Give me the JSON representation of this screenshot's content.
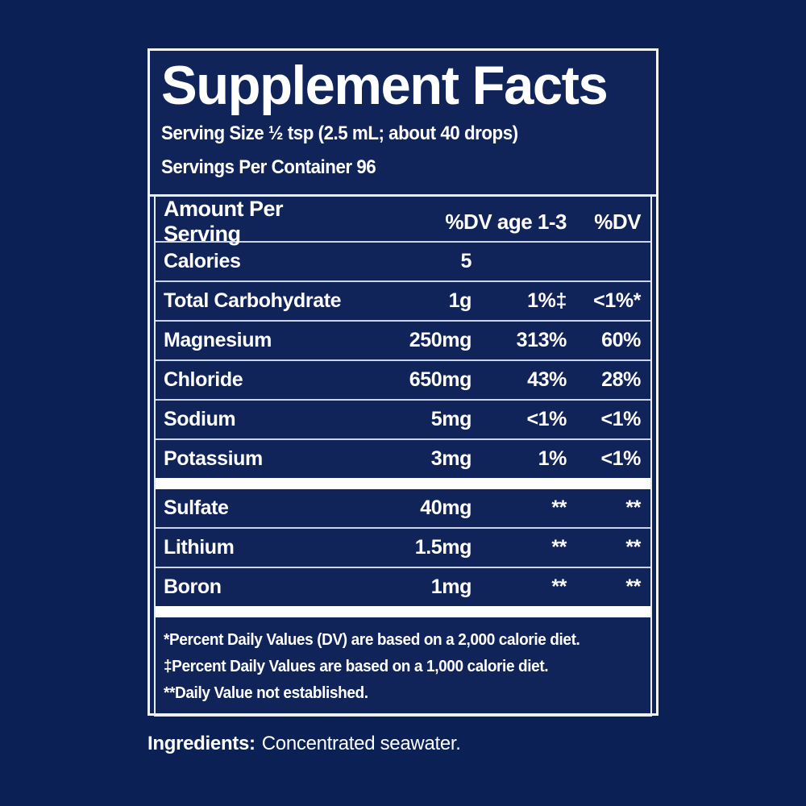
{
  "colors": {
    "background": "#0b2054",
    "panel": "#11245a",
    "text": "#ffffff",
    "border": "#f4f6fb",
    "thin_separator": "#ccd5e8",
    "thick_bar": "#ffffff"
  },
  "label": {
    "title": "Supplement Facts",
    "serving_size": "Serving Size ½ tsp (2.5 mL; about 40 drops)",
    "servings_per_container": "Servings Per Container 96",
    "table": {
      "headers": {
        "amount": "Amount Per Serving",
        "dv_age_1_3": "%DV age 1-3",
        "dv": "%DV"
      },
      "rows": [
        {
          "name": "Calories",
          "amount": "5",
          "dv_age_1_3": "",
          "dv": ""
        },
        {
          "name": "Total Carbohydrate",
          "amount": "1g",
          "dv_age_1_3": "1%‡",
          "dv": "<1%*"
        },
        {
          "name": "Magnesium",
          "amount": "250mg",
          "dv_age_1_3": "313%",
          "dv": "60%"
        },
        {
          "name": "Chloride",
          "amount": "650mg",
          "dv_age_1_3": "43%",
          "dv": "28%"
        },
        {
          "name": "Sodium",
          "amount": "5mg",
          "dv_age_1_3": "<1%",
          "dv": "<1%"
        },
        {
          "name": "Potassium",
          "amount": "3mg",
          "dv_age_1_3": "1%",
          "dv": "<1%"
        },
        {
          "name": "Sulfate",
          "amount": "40mg",
          "dv_age_1_3": "**",
          "dv": "**"
        },
        {
          "name": "Lithium",
          "amount": "1.5mg",
          "dv_age_1_3": "**",
          "dv": "**"
        },
        {
          "name": "Boron",
          "amount": "1mg",
          "dv_age_1_3": "**",
          "dv": "**"
        }
      ],
      "footnotes": [
        "*Percent Daily Values (DV) are based on a 2,000 calorie diet.",
        "‡Percent Daily Values are based on a 1,000 calorie diet.",
        "**Daily Value not established."
      ]
    },
    "ingredients": {
      "label": "Ingredients:",
      "value": "Concentrated seawater."
    }
  }
}
